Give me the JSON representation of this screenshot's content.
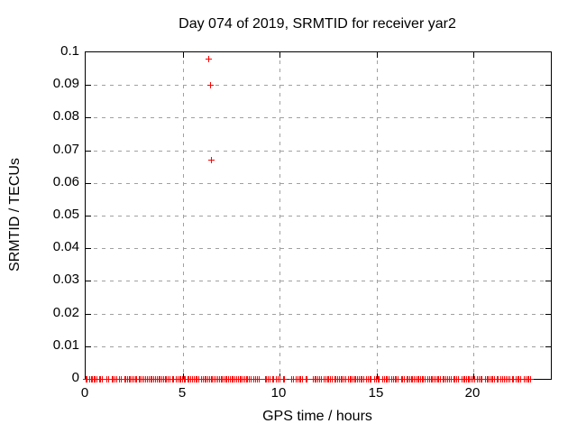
{
  "chart_data": {
    "type": "scatter",
    "title": "Day 074 of 2019, SRMTID for receiver yar2",
    "xlabel": "GPS time / hours",
    "ylabel": "SRMTID / TECUs",
    "xlim": [
      0,
      24
    ],
    "ylim": [
      0,
      0.1
    ],
    "x_ticks": [
      0,
      5,
      10,
      15,
      20
    ],
    "x_tick_labels": [
      "0",
      "5",
      "10",
      "15",
      "20"
    ],
    "y_ticks": [
      0,
      0.01,
      0.02,
      0.03,
      0.04,
      0.05,
      0.06,
      0.07,
      0.08,
      0.09,
      0.1
    ],
    "y_tick_labels": [
      "0",
      "0.01",
      "0.02",
      "0.03",
      "0.04",
      "0.05",
      "0.06",
      "0.07",
      "0.08",
      "0.09",
      "0.1"
    ],
    "grid": true,
    "legend": false,
    "marker": "plus",
    "marker_color": "#ff0000",
    "grid_color": "#a0a0a0",
    "border_color": "#000000",
    "background_color": "#ffffff",
    "outlier_points": [
      [
        6.36,
        0.098
      ],
      [
        6.45,
        0.09
      ],
      [
        6.47,
        0.067
      ]
    ],
    "baseline_value": 0,
    "baseline_xs": [
      0.0,
      0.08,
      0.23,
      0.31,
      0.37,
      0.42,
      0.5,
      0.58,
      0.7,
      0.78,
      0.84,
      1.09,
      1.17,
      1.35,
      1.43,
      1.53,
      1.61,
      1.74,
      1.82,
      2.0,
      2.08,
      2.16,
      2.24,
      2.32,
      2.4,
      2.48,
      2.56,
      2.64,
      2.75,
      2.83,
      2.91,
      2.99,
      3.07,
      3.2,
      3.28,
      3.36,
      3.44,
      3.52,
      3.6,
      3.68,
      3.78,
      3.86,
      3.94,
      4.02,
      4.1,
      4.18,
      4.26,
      4.34,
      4.47,
      4.55,
      4.68,
      4.76,
      4.84,
      4.92,
      5.0,
      5.08,
      5.16,
      5.26,
      5.34,
      5.42,
      5.52,
      5.6,
      5.68,
      5.76,
      5.84,
      5.99,
      6.07,
      6.15,
      6.23,
      6.31,
      6.39,
      6.47,
      6.55,
      6.63,
      6.7,
      6.82,
      6.9,
      6.98,
      7.06,
      7.14,
      7.22,
      7.3,
      7.38,
      7.46,
      7.54,
      7.62,
      7.72,
      7.8,
      7.88,
      7.96,
      8.04,
      8.12,
      8.2,
      8.28,
      8.36,
      8.44,
      8.52,
      8.67,
      8.75,
      8.88,
      8.96,
      9.26,
      9.34,
      9.44,
      9.52,
      9.64,
      9.72,
      9.84,
      9.92,
      10.0,
      10.19,
      10.27,
      10.65,
      10.73,
      10.87,
      10.95,
      11.03,
      11.11,
      11.19,
      11.36,
      11.44,
      11.74,
      11.82,
      11.9,
      11.98,
      12.06,
      12.14,
      12.31,
      12.39,
      12.47,
      12.55,
      12.63,
      12.71,
      12.85,
      12.93,
      13.01,
      13.09,
      13.17,
      13.25,
      13.33,
      13.41,
      13.55,
      13.63,
      13.71,
      13.79,
      13.87,
      13.95,
      14.03,
      14.11,
      14.19,
      14.27,
      14.35,
      14.5,
      14.58,
      14.66,
      14.74,
      14.92,
      15.0,
      15.08,
      15.16,
      15.33,
      15.41,
      15.49,
      15.57,
      15.65,
      15.8,
      15.88,
      15.96,
      16.04,
      16.12,
      16.28,
      16.36,
      16.44,
      16.56,
      16.64,
      16.72,
      16.8,
      16.88,
      16.96,
      17.04,
      17.12,
      17.2,
      17.28,
      17.36,
      17.44,
      17.52,
      17.66,
      17.74,
      17.82,
      17.9,
      17.98,
      18.06,
      18.14,
      18.22,
      18.3,
      18.43,
      18.51,
      18.59,
      18.67,
      18.79,
      18.87,
      18.98,
      19.06,
      19.14,
      19.22,
      19.41,
      19.49,
      19.57,
      19.65,
      19.73,
      19.81,
      19.89,
      19.97,
      20.05,
      20.22,
      20.3,
      20.38,
      20.46,
      20.62,
      20.7,
      20.78,
      20.86,
      20.94,
      21.02,
      21.1,
      21.22,
      21.3,
      21.43,
      21.51,
      21.59,
      21.71,
      21.79,
      21.87,
      22.01,
      22.09,
      22.2,
      22.28,
      22.36,
      22.44,
      22.64,
      22.72,
      22.8,
      22.88,
      22.96
    ]
  }
}
